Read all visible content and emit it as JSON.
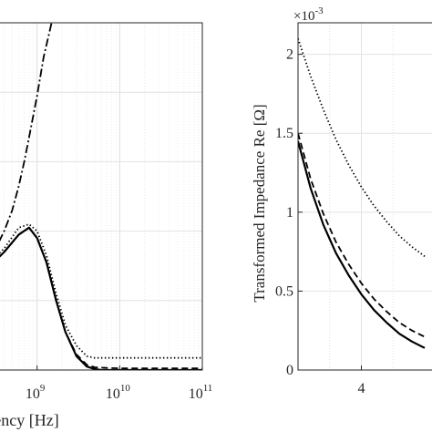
{
  "chart_data": [
    {
      "type": "line",
      "title": "",
      "xlabel": "Frequency [Hz]",
      "ylabel": "",
      "xscale": "log",
      "xlim": [
        100000000,
        100000000000
      ],
      "ylim": [
        0,
        1
      ],
      "grid": true,
      "minor_grid": true,
      "x_ticks": [
        1000000000,
        10000000000,
        100000000000
      ],
      "x_tick_labels": [
        {
          "base": "10",
          "exp": "9"
        },
        {
          "base": "10",
          "exp": "10"
        },
        {
          "base": "10",
          "exp": "11"
        }
      ],
      "series": [
        {
          "style": "dashdot",
          "x": [
            100000000,
            200000000,
            300000000,
            400000000,
            500000000,
            600000000,
            700000000,
            800000000,
            1000000000,
            1200000000,
            1500000000
          ],
          "y": [
            0.25,
            0.3,
            0.34,
            0.4,
            0.46,
            0.53,
            0.6,
            0.67,
            0.79,
            0.9,
            1.0
          ]
        },
        {
          "style": "dotted",
          "x": [
            100000000,
            200000000,
            400000000,
            600000000,
            800000000,
            1000000000,
            1300000000,
            1700000000,
            2200000000,
            3000000000,
            4000000000,
            5000000000,
            7000000000,
            10000000000,
            30000000000,
            100000000000
          ],
          "y": [
            0.2,
            0.28,
            0.35,
            0.41,
            0.42,
            0.4,
            0.33,
            0.22,
            0.13,
            0.07,
            0.04,
            0.035,
            0.035,
            0.035,
            0.035,
            0.035
          ]
        },
        {
          "style": "solid",
          "x": [
            100000000,
            200000000,
            400000000,
            600000000,
            800000000,
            1000000000,
            1300000000,
            1700000000,
            2200000000,
            3000000000,
            4000000000,
            5000000000,
            6000000000,
            8000000000,
            10000000000,
            100000000000
          ],
          "y": [
            0.2,
            0.27,
            0.34,
            0.39,
            0.41,
            0.38,
            0.31,
            0.2,
            0.11,
            0.04,
            0.01,
            0.003,
            0.0,
            0.0,
            0.0,
            0.0
          ]
        },
        {
          "style": "dashed",
          "x": [
            100000000,
            200000000,
            400000000,
            600000000,
            800000000,
            1000000000,
            1300000000,
            1700000000,
            2200000000,
            3000000000,
            4000000000,
            5000000000,
            7000000000,
            10000000000,
            100000000000
          ],
          "y": [
            0.2,
            0.27,
            0.34,
            0.39,
            0.41,
            0.38,
            0.31,
            0.2,
            0.11,
            0.045,
            0.015,
            0.008,
            0.006,
            0.005,
            0.005
          ]
        }
      ]
    },
    {
      "type": "line",
      "title": "",
      "xlabel": "",
      "ylabel": "Transformed Impedance Re [Ω]",
      "y_multiplier": {
        "base": "×10",
        "exp": "-3"
      },
      "xlim": [
        3,
        5
      ],
      "ylim": [
        0,
        2.2
      ],
      "grid": true,
      "x_ticks": [
        4
      ],
      "x_tick_labels": [
        "4"
      ],
      "y_ticks": [
        0,
        0.5,
        1,
        1.5,
        2
      ],
      "y_tick_labels": [
        "0",
        "0.5",
        "1",
        "1.5",
        "2"
      ],
      "series": [
        {
          "style": "dotted",
          "x": [
            3.0,
            3.2,
            3.4,
            3.6,
            3.8,
            4.0,
            4.2,
            4.4,
            4.6,
            4.8,
            5.0
          ],
          "y": [
            2.1,
            1.86,
            1.65,
            1.46,
            1.3,
            1.16,
            1.04,
            0.94,
            0.85,
            0.78,
            0.72
          ]
        },
        {
          "style": "dashed",
          "x": [
            3.0,
            3.2,
            3.4,
            3.6,
            3.8,
            4.0,
            4.2,
            4.4,
            4.6,
            4.8,
            5.0
          ],
          "y": [
            1.5,
            1.21,
            0.99,
            0.81,
            0.67,
            0.55,
            0.45,
            0.37,
            0.3,
            0.25,
            0.21
          ]
        },
        {
          "style": "solid",
          "x": [
            3.0,
            3.2,
            3.4,
            3.6,
            3.8,
            4.0,
            4.2,
            4.4,
            4.6,
            4.8,
            5.0
          ],
          "y": [
            1.45,
            1.15,
            0.92,
            0.74,
            0.6,
            0.48,
            0.38,
            0.3,
            0.23,
            0.18,
            0.14
          ]
        }
      ]
    }
  ]
}
